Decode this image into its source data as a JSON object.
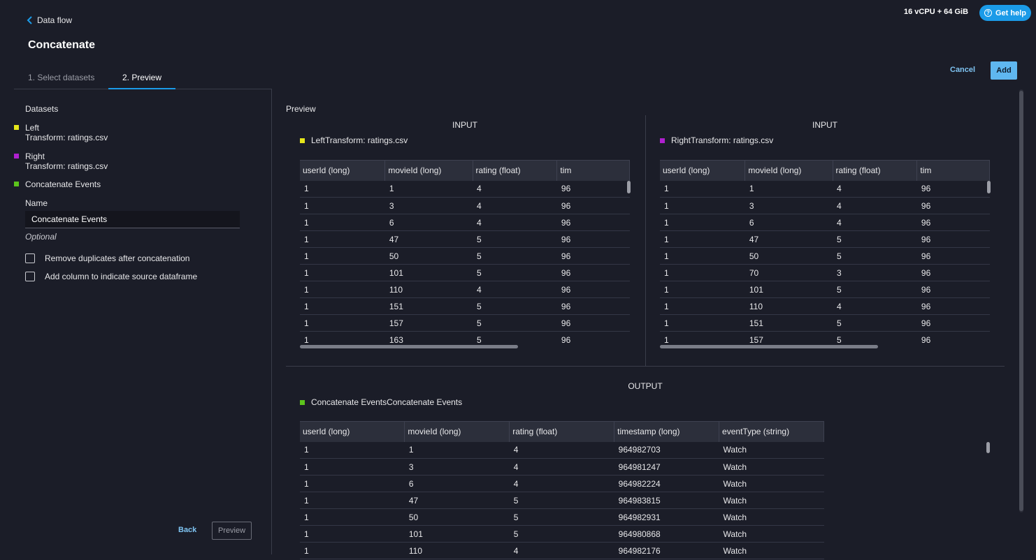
{
  "header": {
    "back_label": "Data flow",
    "title": "Concatenate",
    "resources": "16 vCPU + 64 GiB",
    "help_label": "Get help",
    "help_icon_glyph": "?"
  },
  "tabs": [
    {
      "label": "1. Select datasets"
    },
    {
      "label": "2. Preview"
    }
  ],
  "actions": {
    "cancel_label": "Cancel",
    "add_label": "Add"
  },
  "sidebar": {
    "datasets_title": "Datasets",
    "datasets": [
      {
        "name": "Left",
        "source": "Transform: ratings.csv",
        "color": "#e6e61a"
      },
      {
        "name": "Right",
        "source": "Transform: ratings.csv",
        "color": "#b020d0"
      },
      {
        "name": "Concatenate Events",
        "source": "",
        "color": "#5cc41c"
      }
    ],
    "name_label": "Name",
    "name_value": "Concatenate Events",
    "optional_label": "Optional",
    "options": [
      {
        "label": "Remove duplicates after concatenation",
        "checked": false
      },
      {
        "label": "Add column to indicate source dataframe",
        "checked": false
      }
    ],
    "back_label": "Back",
    "preview_label": "Preview"
  },
  "preview": {
    "title": "Preview",
    "left_input": {
      "section": "INPUT",
      "label": "LeftTransform: ratings.csv",
      "color": "#e6e61a",
      "columns": [
        "userId (long)",
        "movieId (long)",
        "rating (float)",
        "tim"
      ],
      "rows": [
        [
          "1",
          "1",
          "4",
          "96"
        ],
        [
          "1",
          "3",
          "4",
          "96"
        ],
        [
          "1",
          "6",
          "4",
          "96"
        ],
        [
          "1",
          "47",
          "5",
          "96"
        ],
        [
          "1",
          "50",
          "5",
          "96"
        ],
        [
          "1",
          "101",
          "5",
          "96"
        ],
        [
          "1",
          "110",
          "4",
          "96"
        ],
        [
          "1",
          "151",
          "5",
          "96"
        ],
        [
          "1",
          "157",
          "5",
          "96"
        ],
        [
          "1",
          "163",
          "5",
          "96"
        ]
      ]
    },
    "right_input": {
      "section": "INPUT",
      "label": "RightTransform: ratings.csv",
      "color": "#b020d0",
      "columns": [
        "userId (long)",
        "movieId (long)",
        "rating (float)",
        "tim"
      ],
      "rows": [
        [
          "1",
          "1",
          "4",
          "96"
        ],
        [
          "1",
          "3",
          "4",
          "96"
        ],
        [
          "1",
          "6",
          "4",
          "96"
        ],
        [
          "1",
          "47",
          "5",
          "96"
        ],
        [
          "1",
          "50",
          "5",
          "96"
        ],
        [
          "1",
          "70",
          "3",
          "96"
        ],
        [
          "1",
          "101",
          "5",
          "96"
        ],
        [
          "1",
          "110",
          "4",
          "96"
        ],
        [
          "1",
          "151",
          "5",
          "96"
        ],
        [
          "1",
          "157",
          "5",
          "96"
        ]
      ]
    },
    "output": {
      "section": "OUTPUT",
      "label": "Concatenate EventsConcatenate Events",
      "color": "#5cc41c",
      "columns": [
        "userId (long)",
        "movieId (long)",
        "rating (float)",
        "timestamp (long)",
        "eventType (string)"
      ],
      "rows": [
        [
          "1",
          "1",
          "4",
          "964982703",
          "Watch"
        ],
        [
          "1",
          "3",
          "4",
          "964981247",
          "Watch"
        ],
        [
          "1",
          "6",
          "4",
          "964982224",
          "Watch"
        ],
        [
          "1",
          "47",
          "5",
          "964983815",
          "Watch"
        ],
        [
          "1",
          "50",
          "5",
          "964982931",
          "Watch"
        ],
        [
          "1",
          "101",
          "5",
          "964980868",
          "Watch"
        ],
        [
          "1",
          "110",
          "4",
          "964982176",
          "Watch"
        ]
      ]
    }
  }
}
